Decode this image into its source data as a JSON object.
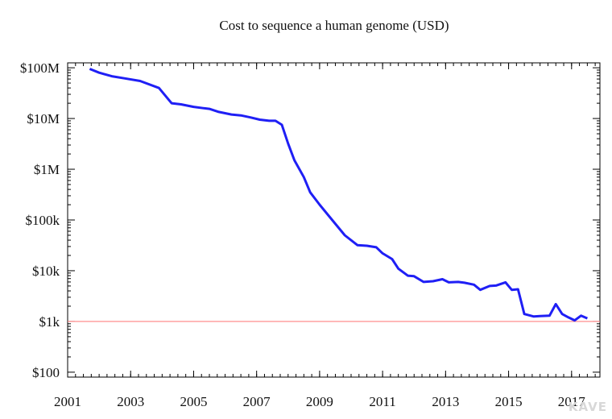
{
  "chart_data": {
    "type": "line",
    "title": "Cost to sequence a human genome (USD)",
    "xlabel": "",
    "ylabel": "",
    "y_scale": "log",
    "xlim": [
      2001,
      2017.9
    ],
    "ylim": [
      80,
      125000000
    ],
    "x_ticks": [
      2001,
      2003,
      2005,
      2007,
      2009,
      2011,
      2013,
      2015,
      2017
    ],
    "x_tick_labels": [
      "2001",
      "2003",
      "2005",
      "2007",
      "2009",
      "2011",
      "2013",
      "2015",
      "2017"
    ],
    "y_ticks": [
      100,
      1000,
      10000,
      100000,
      1000000,
      10000000,
      100000000
    ],
    "y_tick_labels": [
      "$100",
      "$1k",
      "$10k",
      "$100k",
      "$1M",
      "$10M",
      "$100M"
    ],
    "grid": false,
    "reference_line": {
      "value": 1000,
      "color": "#ff8080"
    },
    "series": [
      {
        "name": "",
        "color": "#1f1ff5",
        "points": [
          [
            2001.7,
            95000000
          ],
          [
            2002.0,
            80000000
          ],
          [
            2002.4,
            68000000
          ],
          [
            2002.8,
            62000000
          ],
          [
            2003.3,
            55000000
          ],
          [
            2003.9,
            40000000
          ],
          [
            2004.3,
            20000000
          ],
          [
            2004.6,
            19000000
          ],
          [
            2005.0,
            17000000
          ],
          [
            2005.3,
            16000000
          ],
          [
            2005.5,
            15500000
          ],
          [
            2005.8,
            13500000
          ],
          [
            2006.2,
            12000000
          ],
          [
            2006.5,
            11500000
          ],
          [
            2006.8,
            10500000
          ],
          [
            2007.1,
            9500000
          ],
          [
            2007.4,
            9000000
          ],
          [
            2007.6,
            9000000
          ],
          [
            2007.8,
            7500000
          ],
          [
            2008.0,
            3200000
          ],
          [
            2008.2,
            1500000
          ],
          [
            2008.5,
            700000
          ],
          [
            2008.7,
            350000
          ],
          [
            2009.0,
            200000
          ],
          [
            2009.4,
            100000
          ],
          [
            2009.8,
            50000
          ],
          [
            2010.2,
            32000
          ],
          [
            2010.5,
            31000
          ],
          [
            2010.8,
            29000
          ],
          [
            2011.0,
            22000
          ],
          [
            2011.3,
            17000
          ],
          [
            2011.5,
            11000
          ],
          [
            2011.8,
            8000
          ],
          [
            2012.0,
            7800
          ],
          [
            2012.3,
            6000
          ],
          [
            2012.6,
            6200
          ],
          [
            2012.9,
            6800
          ],
          [
            2013.1,
            5900
          ],
          [
            2013.4,
            6000
          ],
          [
            2013.6,
            5800
          ],
          [
            2013.9,
            5300
          ],
          [
            2014.1,
            4200
          ],
          [
            2014.4,
            5000
          ],
          [
            2014.6,
            5100
          ],
          [
            2014.9,
            5900
          ],
          [
            2015.1,
            4200
          ],
          [
            2015.3,
            4300
          ],
          [
            2015.5,
            1400
          ],
          [
            2015.8,
            1250
          ],
          [
            2016.0,
            1280
          ],
          [
            2016.3,
            1300
          ],
          [
            2016.5,
            2200
          ],
          [
            2016.7,
            1400
          ],
          [
            2016.9,
            1200
          ],
          [
            2017.1,
            1050
          ],
          [
            2017.3,
            1300
          ],
          [
            2017.5,
            1150
          ]
        ]
      }
    ]
  },
  "watermark": "KAVE"
}
